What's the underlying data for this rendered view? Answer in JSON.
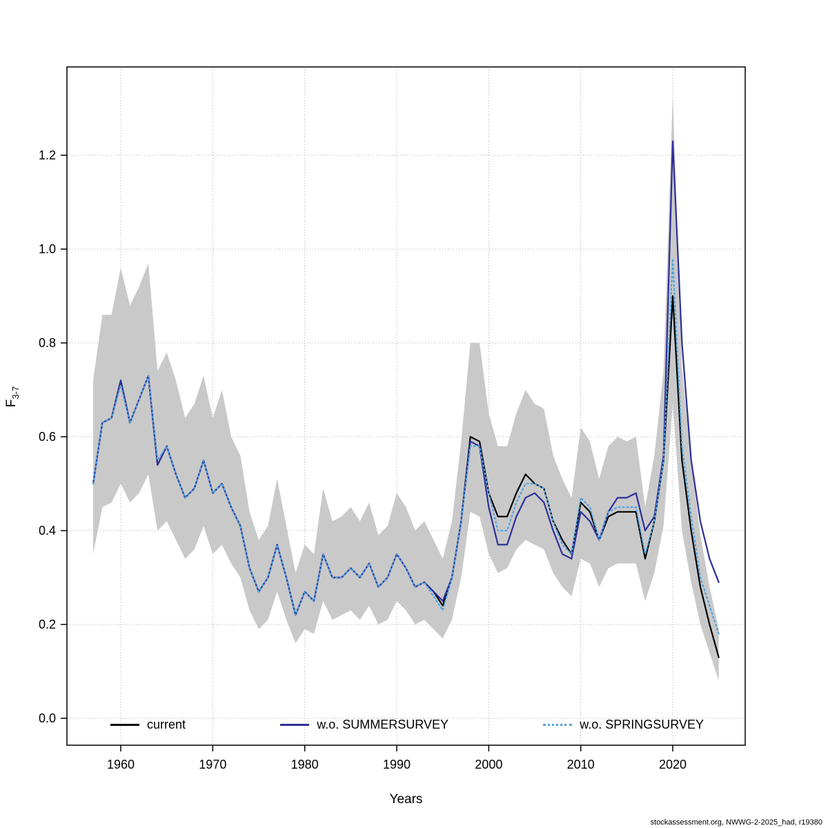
{
  "footer": "stockassessment.org, NWWG-2-2025_had, r19380",
  "chart_data": {
    "type": "line",
    "title": "",
    "xlabel": "Years",
    "ylabel_base": "F",
    "ylabel_sub": "3-7",
    "xlim": [
      1954,
      2028
    ],
    "ylim": [
      -0.06,
      1.39
    ],
    "grid": "dotted",
    "legend_position": "bottom-inside",
    "x_ticks": [
      1960,
      1970,
      1980,
      1990,
      2000,
      2010,
      2020
    ],
    "y_ticks": [
      0.0,
      0.2,
      0.4,
      0.6,
      0.8,
      1.0,
      1.2
    ],
    "x": [
      1957,
      1958,
      1959,
      1960,
      1961,
      1962,
      1963,
      1964,
      1965,
      1966,
      1967,
      1968,
      1969,
      1970,
      1971,
      1972,
      1973,
      1974,
      1975,
      1976,
      1977,
      1978,
      1979,
      1980,
      1981,
      1982,
      1983,
      1984,
      1985,
      1986,
      1987,
      1988,
      1989,
      1990,
      1991,
      1992,
      1993,
      1994,
      1995,
      1996,
      1997,
      1998,
      1999,
      2000,
      2001,
      2002,
      2003,
      2004,
      2005,
      2006,
      2007,
      2008,
      2009,
      2010,
      2011,
      2012,
      2013,
      2014,
      2015,
      2016,
      2017,
      2018,
      2019,
      2020,
      2021,
      2022,
      2023,
      2024,
      2025
    ],
    "band": {
      "name": "current confidence interval",
      "color": "#c9c9c9",
      "lower": [
        0.35,
        0.45,
        0.46,
        0.5,
        0.46,
        0.48,
        0.52,
        0.4,
        0.42,
        0.38,
        0.34,
        0.36,
        0.41,
        0.35,
        0.37,
        0.33,
        0.3,
        0.23,
        0.19,
        0.21,
        0.27,
        0.21,
        0.16,
        0.19,
        0.18,
        0.25,
        0.21,
        0.22,
        0.23,
        0.21,
        0.24,
        0.2,
        0.21,
        0.25,
        0.23,
        0.2,
        0.21,
        0.19,
        0.17,
        0.21,
        0.3,
        0.44,
        0.43,
        0.35,
        0.31,
        0.32,
        0.36,
        0.38,
        0.37,
        0.36,
        0.31,
        0.28,
        0.26,
        0.34,
        0.33,
        0.28,
        0.32,
        0.33,
        0.33,
        0.33,
        0.25,
        0.31,
        0.41,
        0.67,
        0.4,
        0.29,
        0.2,
        0.14,
        0.08
      ],
      "upper": [
        0.72,
        0.86,
        0.86,
        0.96,
        0.88,
        0.92,
        0.97,
        0.74,
        0.78,
        0.72,
        0.64,
        0.67,
        0.73,
        0.64,
        0.7,
        0.6,
        0.56,
        0.44,
        0.38,
        0.41,
        0.51,
        0.41,
        0.31,
        0.37,
        0.35,
        0.49,
        0.42,
        0.43,
        0.45,
        0.42,
        0.46,
        0.39,
        0.41,
        0.48,
        0.45,
        0.4,
        0.42,
        0.38,
        0.34,
        0.42,
        0.59,
        0.8,
        0.8,
        0.65,
        0.58,
        0.58,
        0.65,
        0.7,
        0.67,
        0.66,
        0.56,
        0.51,
        0.47,
        0.62,
        0.59,
        0.51,
        0.58,
        0.6,
        0.59,
        0.6,
        0.45,
        0.56,
        0.74,
        1.33,
        0.75,
        0.55,
        0.39,
        0.28,
        0.19
      ]
    },
    "series": [
      {
        "name": "current",
        "color": "#000000",
        "dash": null,
        "values": [
          0.5,
          0.63,
          0.64,
          0.72,
          0.63,
          0.68,
          0.73,
          0.54,
          0.58,
          0.52,
          0.47,
          0.49,
          0.55,
          0.48,
          0.5,
          0.45,
          0.41,
          0.32,
          0.27,
          0.3,
          0.37,
          0.3,
          0.22,
          0.27,
          0.25,
          0.35,
          0.3,
          0.3,
          0.32,
          0.3,
          0.33,
          0.28,
          0.3,
          0.35,
          0.32,
          0.28,
          0.29,
          0.27,
          0.24,
          0.3,
          0.42,
          0.6,
          0.59,
          0.48,
          0.43,
          0.43,
          0.48,
          0.52,
          0.5,
          0.49,
          0.42,
          0.38,
          0.35,
          0.46,
          0.44,
          0.38,
          0.43,
          0.44,
          0.44,
          0.44,
          0.34,
          0.42,
          0.55,
          0.9,
          0.55,
          0.4,
          0.28,
          0.2,
          0.13
        ]
      },
      {
        "name": "w.o. SUMMERSURVEY",
        "color": "#2e2e99",
        "dash": null,
        "values": [
          0.5,
          0.63,
          0.64,
          0.72,
          0.63,
          0.68,
          0.73,
          0.54,
          0.58,
          0.52,
          0.47,
          0.49,
          0.55,
          0.48,
          0.5,
          0.45,
          0.41,
          0.32,
          0.27,
          0.3,
          0.37,
          0.3,
          0.22,
          0.27,
          0.25,
          0.35,
          0.3,
          0.3,
          0.32,
          0.3,
          0.33,
          0.28,
          0.3,
          0.35,
          0.32,
          0.28,
          0.29,
          0.27,
          0.25,
          0.3,
          0.42,
          0.59,
          0.58,
          0.45,
          0.37,
          0.37,
          0.43,
          0.47,
          0.48,
          0.46,
          0.4,
          0.35,
          0.34,
          0.44,
          0.42,
          0.38,
          0.44,
          0.47,
          0.47,
          0.48,
          0.4,
          0.43,
          0.56,
          1.23,
          0.8,
          0.55,
          0.42,
          0.34,
          0.29
        ]
      },
      {
        "name": "w.o. SPRINGSURVEY",
        "color": "#4ea3e2",
        "dash": "2 4",
        "values": [
          0.5,
          0.63,
          0.64,
          0.71,
          0.63,
          0.68,
          0.73,
          0.55,
          0.58,
          0.52,
          0.47,
          0.49,
          0.55,
          0.48,
          0.5,
          0.45,
          0.41,
          0.32,
          0.27,
          0.3,
          0.37,
          0.3,
          0.22,
          0.27,
          0.25,
          0.35,
          0.3,
          0.3,
          0.32,
          0.3,
          0.33,
          0.28,
          0.3,
          0.35,
          0.32,
          0.28,
          0.29,
          0.26,
          0.23,
          0.3,
          0.42,
          0.58,
          0.58,
          0.48,
          0.4,
          0.4,
          0.46,
          0.5,
          0.5,
          0.49,
          0.42,
          0.37,
          0.35,
          0.47,
          0.45,
          0.38,
          0.44,
          0.45,
          0.45,
          0.45,
          0.35,
          0.42,
          0.55,
          0.98,
          0.58,
          0.43,
          0.3,
          0.24,
          0.18
        ]
      }
    ]
  }
}
